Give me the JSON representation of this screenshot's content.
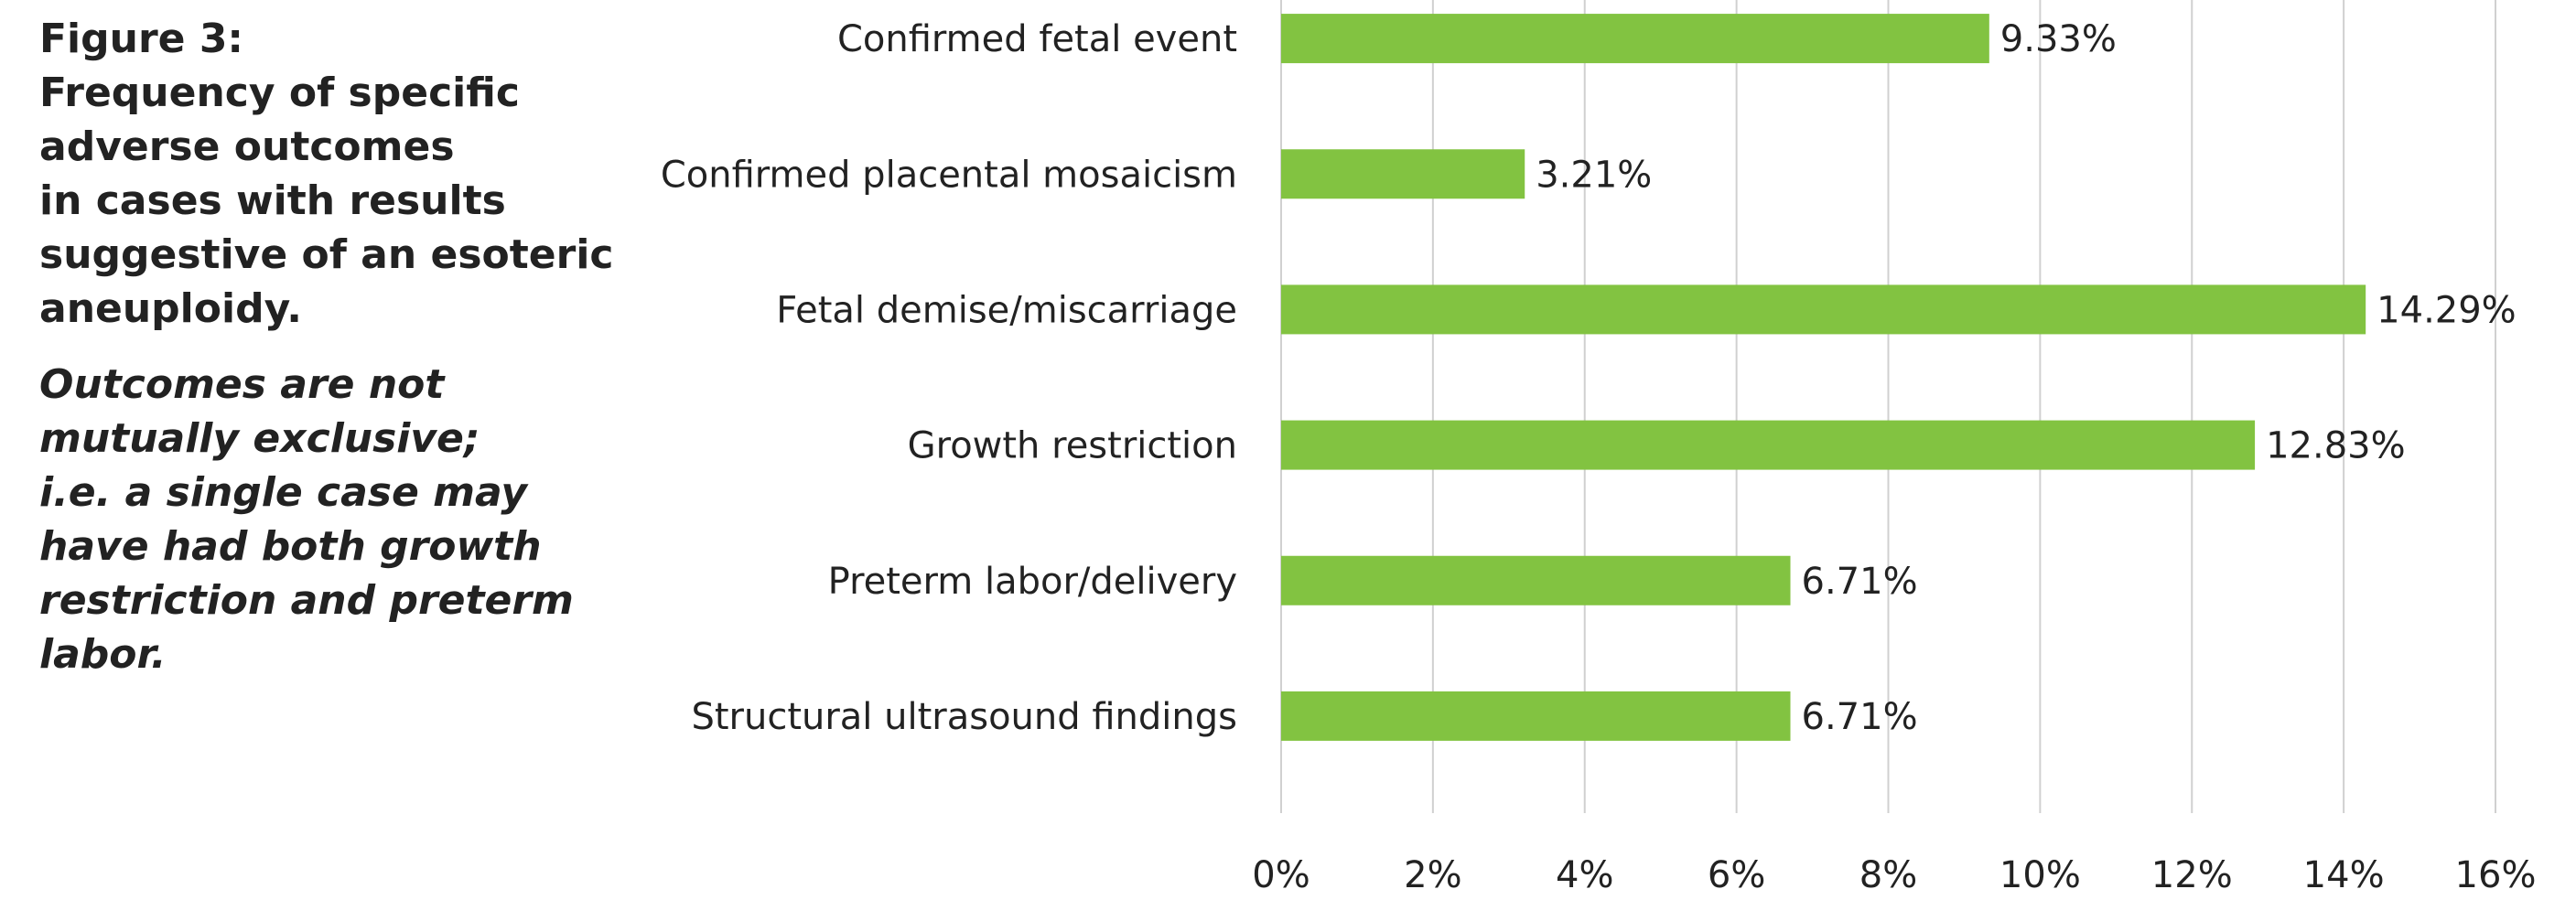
{
  "chart_data": {
    "type": "bar",
    "orientation": "horizontal",
    "title_lines": [
      "Figure 3:",
      "Frequency of specific",
      "adverse outcomes",
      "in cases with results",
      "suggestive of an esoteric",
      "aneuploidy."
    ],
    "note_lines": [
      " Outcomes are not",
      "mutually exclusive;",
      "i.e. a single case may",
      "have had both growth",
      "restriction and preterm",
      "labor."
    ],
    "categories": [
      "Confirmed fetal event",
      "Confirmed placental mosaicism",
      "Fetal demise/miscarriage",
      "Growth restriction",
      "Preterm labor/delivery",
      "Structural ultrasound findings"
    ],
    "values": [
      9.33,
      3.21,
      14.29,
      12.83,
      6.71,
      6.71
    ],
    "value_labels": [
      "9.33%",
      "3.21%",
      "14.29%",
      "12.83%",
      "6.71%",
      "6.71%"
    ],
    "color": "#82c341",
    "xlim": [
      0,
      16
    ],
    "xticks": [
      {
        "value": 0,
        "label": "0%"
      },
      {
        "value": 2,
        "label": "2%"
      },
      {
        "value": 4,
        "label": "4%"
      },
      {
        "value": 6,
        "label": "6%"
      },
      {
        "value": 8,
        "label": "8%"
      },
      {
        "value": 10,
        "label": "10%"
      },
      {
        "value": 12,
        "label": "12%"
      },
      {
        "value": 14,
        "label": "14%"
      },
      {
        "value": 16,
        "label": "16%"
      }
    ],
    "grid": true
  }
}
